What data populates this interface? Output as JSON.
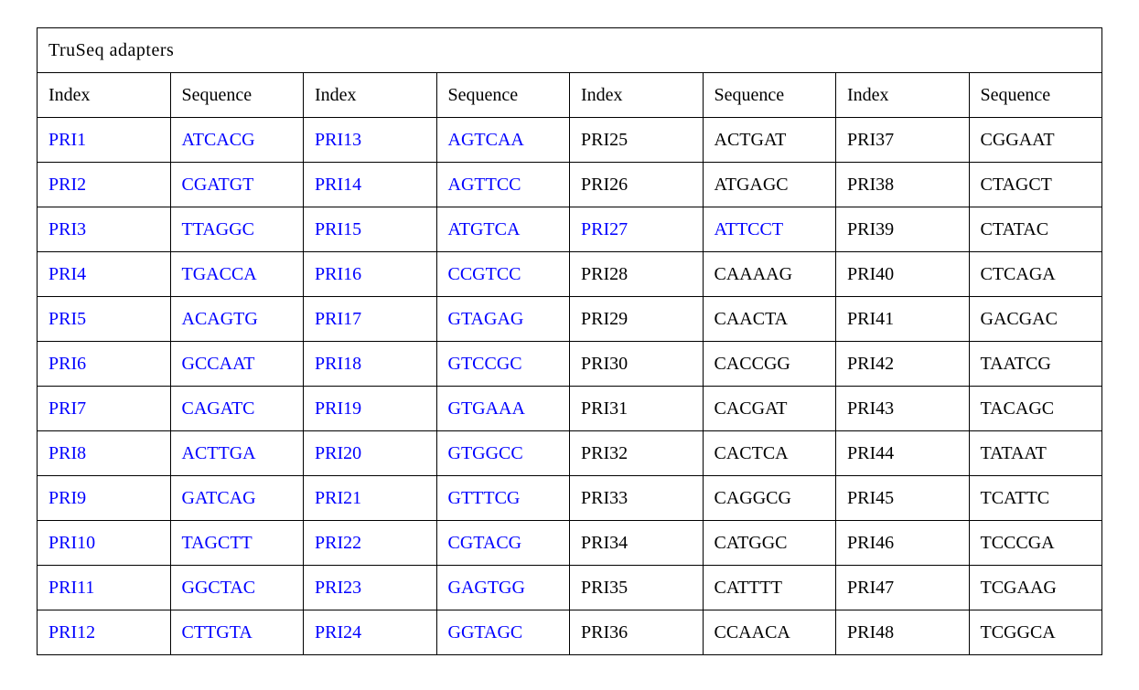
{
  "table": {
    "title": "TruSeq  adapters",
    "columns": [
      "Index",
      "Sequence",
      "Index",
      "Sequence",
      "Index",
      "Sequence",
      "Index",
      "Sequence"
    ],
    "colors": {
      "link_blue": "#0000ff",
      "text_black": "#000000",
      "border": "#000000",
      "background": "#ffffff"
    },
    "font": {
      "family": "Times New Roman",
      "size_pt": 15
    },
    "rows": [
      [
        {
          "text": "PRI1",
          "blue": true
        },
        {
          "text": "ATCACG",
          "blue": true
        },
        {
          "text": "PRI13",
          "blue": true
        },
        {
          "text": "AGTCAA",
          "blue": true
        },
        {
          "text": "PRI25",
          "blue": false
        },
        {
          "text": "ACTGAT",
          "blue": false
        },
        {
          "text": "PRI37",
          "blue": false
        },
        {
          "text": "CGGAAT",
          "blue": false
        }
      ],
      [
        {
          "text": "PRI2",
          "blue": true
        },
        {
          "text": "CGATGT",
          "blue": true
        },
        {
          "text": "PRI14",
          "blue": true
        },
        {
          "text": "AGTTCC",
          "blue": true
        },
        {
          "text": "PRI26",
          "blue": false
        },
        {
          "text": "ATGAGC",
          "blue": false
        },
        {
          "text": "PRI38",
          "blue": false
        },
        {
          "text": "CTAGCT",
          "blue": false
        }
      ],
      [
        {
          "text": "PRI3",
          "blue": true
        },
        {
          "text": "TTAGGC",
          "blue": true
        },
        {
          "text": "PRI15",
          "blue": true
        },
        {
          "text": "ATGTCA",
          "blue": true
        },
        {
          "text": "PRI27",
          "blue": true
        },
        {
          "text": "ATTCCT",
          "blue": true
        },
        {
          "text": "PRI39",
          "blue": false
        },
        {
          "text": "CTATAC",
          "blue": false
        }
      ],
      [
        {
          "text": "PRI4",
          "blue": true
        },
        {
          "text": "TGACCA",
          "blue": true
        },
        {
          "text": "PRI16",
          "blue": true
        },
        {
          "text": "CCGTCC",
          "blue": true
        },
        {
          "text": "PRI28",
          "blue": false
        },
        {
          "text": "CAAAAG",
          "blue": false
        },
        {
          "text": "PRI40",
          "blue": false
        },
        {
          "text": "CTCAGA",
          "blue": false
        }
      ],
      [
        {
          "text": "PRI5",
          "blue": true
        },
        {
          "text": "ACAGTG",
          "blue": true
        },
        {
          "text": "PRI17",
          "blue": true
        },
        {
          "text": "GTAGAG",
          "blue": true
        },
        {
          "text": "PRI29",
          "blue": false
        },
        {
          "text": "CAACTA",
          "blue": false
        },
        {
          "text": "PRI41",
          "blue": false
        },
        {
          "text": "GACGAC",
          "blue": false
        }
      ],
      [
        {
          "text": "PRI6",
          "blue": true
        },
        {
          "text": "GCCAAT",
          "blue": true
        },
        {
          "text": "PRI18",
          "blue": true
        },
        {
          "text": "GTCCGC",
          "blue": true
        },
        {
          "text": "PRI30",
          "blue": false
        },
        {
          "text": "CACCGG",
          "blue": false
        },
        {
          "text": "PRI42",
          "blue": false
        },
        {
          "text": "TAATCG",
          "blue": false
        }
      ],
      [
        {
          "text": "PRI7",
          "blue": true
        },
        {
          "text": "CAGATC",
          "blue": true
        },
        {
          "text": "PRI19",
          "blue": true
        },
        {
          "text": "GTGAAA",
          "blue": true
        },
        {
          "text": "PRI31",
          "blue": false
        },
        {
          "text": "CACGAT",
          "blue": false
        },
        {
          "text": "PRI43",
          "blue": false
        },
        {
          "text": "TACAGC",
          "blue": false
        }
      ],
      [
        {
          "text": "PRI8",
          "blue": true
        },
        {
          "text": "ACTTGA",
          "blue": true
        },
        {
          "text": "PRI20",
          "blue": true
        },
        {
          "text": "GTGGCC",
          "blue": true
        },
        {
          "text": "PRI32",
          "blue": false
        },
        {
          "text": "CACTCA",
          "blue": false
        },
        {
          "text": "PRI44",
          "blue": false
        },
        {
          "text": "TATAAT",
          "blue": false
        }
      ],
      [
        {
          "text": "PRI9",
          "blue": true
        },
        {
          "text": "GATCAG",
          "blue": true
        },
        {
          "text": "PRI21",
          "blue": true
        },
        {
          "text": "GTTTCG",
          "blue": true
        },
        {
          "text": "PRI33",
          "blue": false
        },
        {
          "text": "CAGGCG",
          "blue": false
        },
        {
          "text": "PRI45",
          "blue": false
        },
        {
          "text": "TCATTC",
          "blue": false
        }
      ],
      [
        {
          "text": "PRI10",
          "blue": true
        },
        {
          "text": "TAGCTT",
          "blue": true
        },
        {
          "text": "PRI22",
          "blue": true
        },
        {
          "text": "CGTACG",
          "blue": true
        },
        {
          "text": "PRI34",
          "blue": false
        },
        {
          "text": "CATGGC",
          "blue": false
        },
        {
          "text": "PRI46",
          "blue": false
        },
        {
          "text": "TCCCGA",
          "blue": false
        }
      ],
      [
        {
          "text": "PRI11",
          "blue": true
        },
        {
          "text": "GGCTAC",
          "blue": true
        },
        {
          "text": "PRI23",
          "blue": true
        },
        {
          "text": "GAGTGG",
          "blue": true
        },
        {
          "text": "PRI35",
          "blue": false
        },
        {
          "text": "CATTTT",
          "blue": false
        },
        {
          "text": "PRI47",
          "blue": false
        },
        {
          "text": "TCGAAG",
          "blue": false
        }
      ],
      [
        {
          "text": "PRI12",
          "blue": true
        },
        {
          "text": "CTTGTA",
          "blue": true
        },
        {
          "text": "PRI24",
          "blue": true
        },
        {
          "text": "GGTAGC",
          "blue": true
        },
        {
          "text": "PRI36",
          "blue": false
        },
        {
          "text": "CCAACA",
          "blue": false
        },
        {
          "text": "PRI48",
          "blue": false
        },
        {
          "text": "TCGGCA",
          "blue": false
        }
      ]
    ]
  }
}
